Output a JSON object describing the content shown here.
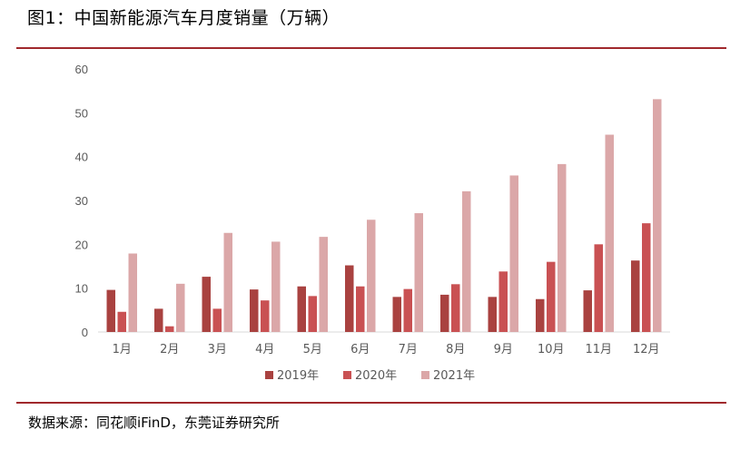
{
  "title": "图1：中国新能源汽车月度销量（万辆）",
  "source": "数据来源：同花顺iFinD，东莞证券研究所",
  "colors": {
    "rule": "#a0282c",
    "axis": "#d9d9d9",
    "text": "#595959"
  },
  "chart_data": {
    "type": "bar",
    "title": "",
    "xlabel": "",
    "ylabel": "",
    "ylim": [
      0,
      60
    ],
    "yticks": [
      0,
      10,
      20,
      30,
      40,
      50,
      60
    ],
    "grid": false,
    "legend_position": "bottom",
    "categories": [
      "1月",
      "2月",
      "3月",
      "4月",
      "5月",
      "6月",
      "7月",
      "8月",
      "9月",
      "10月",
      "11月",
      "12月"
    ],
    "series": [
      {
        "name": "2019年",
        "color": "#a94240",
        "values": [
          9.6,
          5.3,
          12.6,
          9.7,
          10.4,
          15.2,
          8.0,
          8.5,
          8.0,
          7.5,
          9.5,
          16.3
        ]
      },
      {
        "name": "2020年",
        "color": "#c95153",
        "values": [
          4.6,
          1.3,
          5.3,
          7.2,
          8.2,
          10.4,
          9.8,
          10.9,
          13.8,
          16.0,
          20.0,
          24.8
        ]
      },
      {
        "name": "2021年",
        "color": "#dba7a8",
        "values": [
          17.9,
          11.0,
          22.6,
          20.6,
          21.7,
          25.6,
          27.1,
          32.1,
          35.7,
          38.3,
          45.0,
          53.1
        ]
      }
    ]
  }
}
